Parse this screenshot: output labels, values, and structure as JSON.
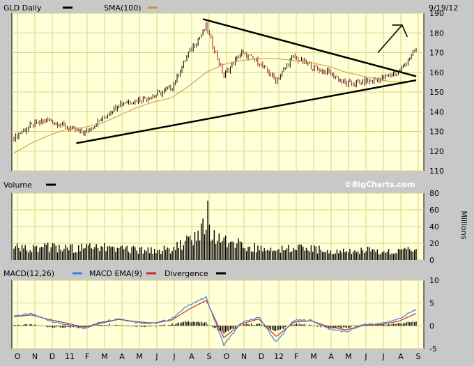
{
  "chart_data": [
    {
      "type": "candlestick",
      "title": "GLD Daily",
      "date_label": "9/19/12",
      "legend": [
        {
          "name": "GLD Daily",
          "color": "#000000"
        },
        {
          "name": "SMA(100)",
          "color": "#c8963c"
        }
      ],
      "ylim": [
        110,
        190
      ],
      "yticks": [
        "110",
        "120",
        "130",
        "140",
        "150",
        "160",
        "170",
        "180",
        "190"
      ],
      "series": [
        {
          "name": "GLD Daily",
          "x": [
            "Oct 2010",
            "Nov",
            "Dec",
            "Jan 2011",
            "Feb",
            "Mar",
            "Apr",
            "May",
            "Jun",
            "Jul",
            "Aug",
            "Sep",
            "Oct",
            "Nov",
            "Dec",
            "Jan 2012",
            "Feb",
            "Mar",
            "Apr",
            "May",
            "Jun",
            "Jul",
            "Aug",
            "Sep 19"
          ],
          "values": [
            127,
            133,
            136,
            132,
            129,
            136,
            144,
            146,
            148,
            152,
            170,
            183,
            158,
            170,
            165,
            156,
            168,
            163,
            160,
            154,
            155,
            157,
            160,
            172
          ]
        },
        {
          "name": "SMA(100)",
          "x": [
            "Oct 2010",
            "Nov",
            "Dec",
            "Jan 2011",
            "Feb",
            "Mar",
            "Apr",
            "May",
            "Jun",
            "Jul",
            "Aug",
            "Sep",
            "Oct",
            "Nov",
            "Dec",
            "Jan 2012",
            "Feb",
            "Mar",
            "Apr",
            "May",
            "Jun",
            "Jul",
            "Aug",
            "Sep 19"
          ],
          "values": [
            119,
            124,
            128,
            131,
            132,
            134,
            138,
            142,
            145,
            147,
            153,
            160,
            164,
            166,
            167,
            167,
            166,
            165,
            163,
            160,
            158,
            156,
            155,
            156
          ]
        }
      ],
      "annotations": [
        "upper trendline",
        "lower trendline",
        "up arrow"
      ]
    },
    {
      "type": "bar",
      "title": "Volume",
      "watermark": "©BigCharts.com",
      "ylabel": "Millions",
      "ylim": [
        0,
        80
      ],
      "yticks": [
        "0",
        "20",
        "40",
        "60",
        "80"
      ],
      "x": [
        "Oct 2010",
        "Nov",
        "Dec",
        "Jan 2011",
        "Feb",
        "Mar",
        "Apr",
        "May",
        "Jun",
        "Jul",
        "Aug",
        "Sep",
        "Oct",
        "Nov",
        "Dec",
        "Jan 2012",
        "Feb",
        "Mar",
        "Apr",
        "May",
        "Jun",
        "Jul",
        "Aug",
        "Sep 19"
      ],
      "values": [
        15,
        14,
        16,
        14,
        14,
        15,
        14,
        12,
        12,
        13,
        22,
        40,
        22,
        18,
        15,
        14,
        14,
        13,
        12,
        11,
        12,
        10,
        10,
        14
      ],
      "peak": 71
    },
    {
      "type": "line",
      "title": "MACD",
      "legend": [
        {
          "name": "MACD(12,26)",
          "color": "#3a7fe0"
        },
        {
          "name": "MACD EMA(9)",
          "color": "#c03028"
        },
        {
          "name": "Divergence",
          "color": "#000000"
        }
      ],
      "ylim": [
        -5,
        10
      ],
      "yticks": [
        "-5",
        "0",
        "5",
        "10"
      ],
      "x": [
        "Oct 2010",
        "Nov",
        "Dec",
        "Jan 2011",
        "Feb",
        "Mar",
        "Apr",
        "May",
        "Jun",
        "Jul",
        "Aug",
        "Sep",
        "Oct",
        "Nov",
        "Dec",
        "Jan 2012",
        "Feb",
        "Mar",
        "Apr",
        "May",
        "Jun",
        "Jul",
        "Aug",
        "Sep 19"
      ],
      "series": [
        {
          "name": "MACD(12,26)",
          "values": [
            2.2,
            2.6,
            1.2,
            0.2,
            -0.6,
            0.9,
            1.6,
            0.8,
            0.5,
            1.5,
            4.6,
            6.2,
            -4.2,
            0.6,
            1.9,
            -3.6,
            1.2,
            1.2,
            -0.6,
            -1.4,
            0.3,
            0.5,
            1.5,
            3.6
          ]
        },
        {
          "name": "MACD EMA(9)",
          "values": [
            2.0,
            2.4,
            1.4,
            0.6,
            -0.3,
            0.6,
            1.4,
            0.9,
            0.6,
            1.2,
            3.6,
            5.6,
            -2.6,
            0.4,
            1.5,
            -2.4,
            0.8,
            1.1,
            -0.2,
            -0.9,
            0.1,
            0.3,
            1.0,
            2.7
          ]
        }
      ]
    }
  ],
  "x_axis_labels": [
    "O",
    "N",
    "D",
    "11",
    "F",
    "M",
    "A",
    "M",
    "J",
    "J",
    "A",
    "S",
    "O",
    "N",
    "D",
    "12",
    "F",
    "M",
    "A",
    "M",
    "J",
    "J",
    "A",
    "S"
  ]
}
